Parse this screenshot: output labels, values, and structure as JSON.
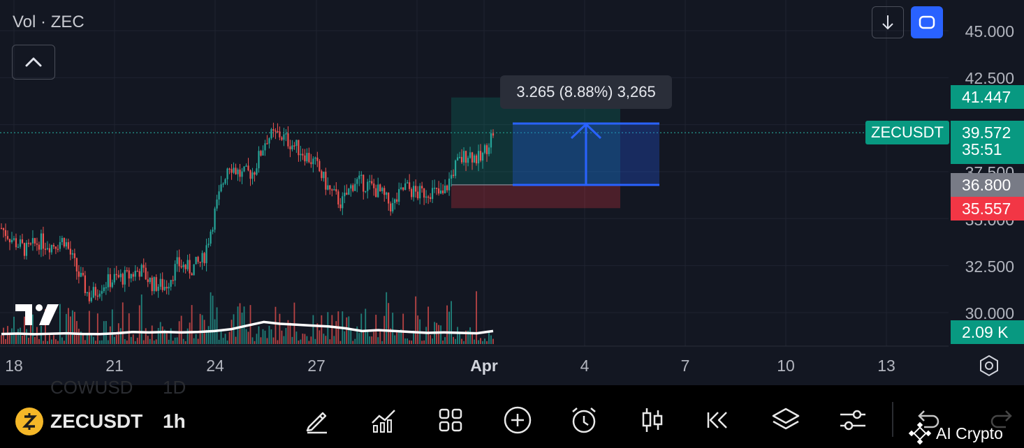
{
  "legend": {
    "label": "Vol · ZEC"
  },
  "tooltip": {
    "text": "3.265 (8.88%) 3,265"
  },
  "price_axis": {
    "labels": [
      "45.000",
      "42.500",
      "37.500",
      "35.000",
      "32.500",
      "30.000"
    ],
    "badges": {
      "target": "41.447",
      "last": "39.572",
      "countdown": "35:51",
      "entry": "36.800",
      "stop": "35.557",
      "volume": "2.09 K"
    },
    "symbol_badge": "ZECUSDT"
  },
  "time_axis": {
    "labels": [
      "18",
      "21",
      "24",
      "27",
      "Apr",
      "4",
      "7",
      "10",
      "13"
    ]
  },
  "bottom_bar": {
    "symbol": "ZECUSDT",
    "interval": "1h",
    "ghost_symbol": "COWUSD",
    "ghost_interval": "1D",
    "watermark": "AI Crypto"
  },
  "colors": {
    "background": "#131722",
    "up": "#26a69a",
    "down": "#ef5350",
    "accent": "#2962ff",
    "badge_green": "#089981",
    "badge_red": "#f23645",
    "badge_gray": "#787b86"
  },
  "chart_data": {
    "type": "candlestick",
    "symbol": "ZECUSDT",
    "interval": "1h",
    "ylim": [
      29.0,
      45.5
    ],
    "x": [
      "Mar 18",
      "Mar 19",
      "Mar 20",
      "Mar 21",
      "Mar 22",
      "Mar 23",
      "Mar 24",
      "Mar 25",
      "Mar 26",
      "Mar 27",
      "Mar 28",
      "Mar 29",
      "Mar 30",
      "Mar 31",
      "Apr 1"
    ],
    "close_path": [
      34.5,
      33.8,
      33.3,
      33.8,
      33.6,
      33.9,
      32.2,
      30.8,
      31.5,
      31.8,
      31.9,
      32.3,
      31.5,
      31.4,
      32.6,
      32.3,
      32.8,
      35.5,
      38.0,
      37.3,
      37.5,
      39.3,
      39.5,
      39.0,
      38.5,
      37.8,
      36.5,
      35.8,
      37.0,
      36.8,
      36.4,
      35.6,
      36.7,
      36.3,
      36.5,
      36.2,
      37.8,
      38.5,
      38.1,
      39.6
    ],
    "volume_line": [
      0.88,
      0.92,
      0.85,
      0.9,
      0.95,
      0.88,
      0.87,
      0.95,
      1.1,
      1.05,
      1.1,
      1.05,
      1.1,
      1.2,
      1.4,
      1.8,
      2.2,
      2.0,
      1.9,
      1.8,
      1.7,
      1.5,
      1.2,
      1.3,
      1.2,
      1.1,
      1.0,
      1.05,
      1.0,
      0.95,
      1.2
    ],
    "last_price": 39.572,
    "position": {
      "type": "long",
      "entry": 36.8,
      "target": 41.447,
      "stop": 35.557
    },
    "measure": {
      "change": "3.265",
      "percent": "8.88%",
      "ticks": "3,265"
    }
  }
}
